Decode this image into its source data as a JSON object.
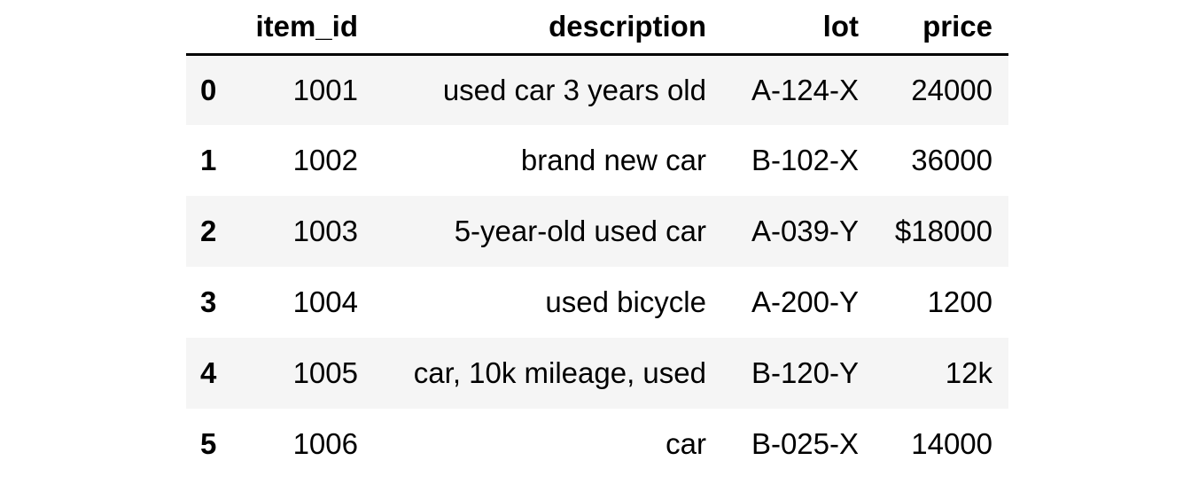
{
  "columns": {
    "index": "",
    "item_id": "item_id",
    "description": "description",
    "lot": "lot",
    "price": "price"
  },
  "rows": [
    {
      "index": "0",
      "item_id": "1001",
      "description": "used car 3 years old",
      "lot": "A-124-X",
      "price": "24000"
    },
    {
      "index": "1",
      "item_id": "1002",
      "description": "brand new car",
      "lot": "B-102-X",
      "price": "36000"
    },
    {
      "index": "2",
      "item_id": "1003",
      "description": "5-year-old used car",
      "lot": "A-039-Y",
      "price": "$18000"
    },
    {
      "index": "3",
      "item_id": "1004",
      "description": "used bicycle",
      "lot": "A-200-Y",
      "price": "1200"
    },
    {
      "index": "4",
      "item_id": "1005",
      "description": "car, 10k mileage, used",
      "lot": "B-120-Y",
      "price": "12k"
    },
    {
      "index": "5",
      "item_id": "1006",
      "description": "car",
      "lot": "B-025-X",
      "price": "14000"
    }
  ],
  "colors": {
    "stripe": "#f5f5f5",
    "header_rule": "#000000"
  }
}
